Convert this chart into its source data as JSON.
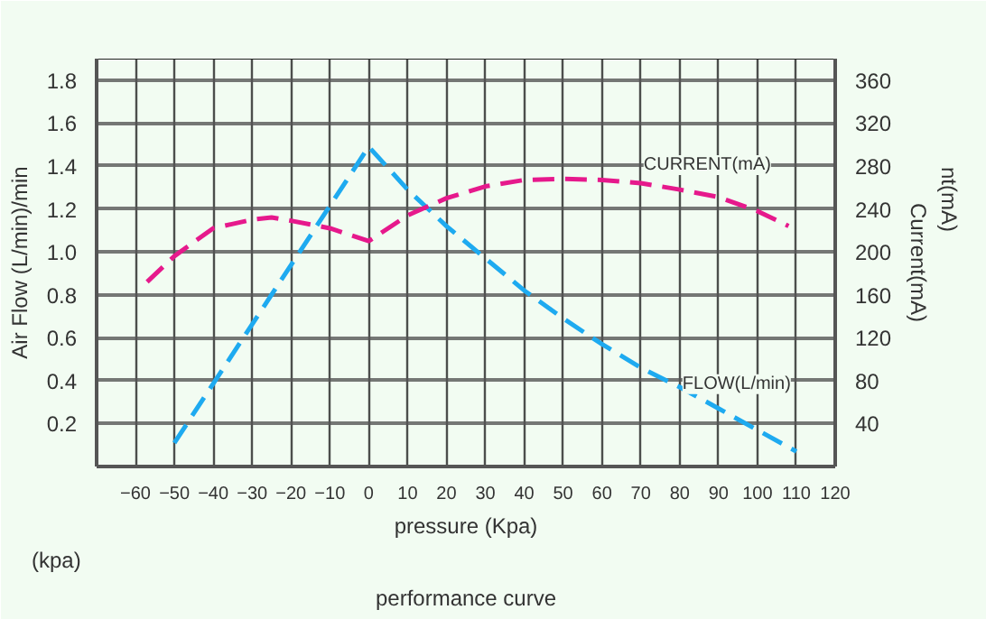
{
  "chart_data": {
    "type": "line",
    "title": "performance curve",
    "xlabel": "pressure (Kpa)",
    "ylabel": "Air Flow (L/min)/min",
    "y2label": "Current(mA)",
    "annotations": [
      "(kpa)",
      "nt(mA)"
    ],
    "x": [
      -50,
      0,
      10,
      20,
      30,
      40,
      50,
      60,
      70,
      80,
      90,
      100,
      110
    ],
    "series": [
      {
        "name": "FLOW(L/min)",
        "color": "#1eaaf0",
        "values": [
          0.11,
          1.49,
          1.29,
          1.12,
          0.97,
          0.82,
          0.69,
          0.57,
          0.46,
          0.37,
          0.27,
          0.17,
          0.07
        ]
      },
      {
        "name": "CURRENT(mA)",
        "color": "#e6198c",
        "axis": "y2",
        "x": [
          -57,
          -50,
          -40,
          -30,
          -25,
          -20,
          -10,
          0,
          10,
          20,
          30,
          40,
          50,
          60,
          70,
          80,
          90,
          100,
          108
        ],
        "values": [
          172,
          196,
          222,
          230,
          232,
          229,
          222,
          210,
          234,
          250,
          261,
          267,
          268,
          267,
          264,
          258,
          251,
          238,
          224
        ]
      }
    ],
    "xlim": [
      -70,
      120
    ],
    "xticks": [
      -60,
      -50,
      -40,
      -30,
      -20,
      -10,
      0,
      10,
      20,
      30,
      40,
      50,
      60,
      70,
      80,
      90,
      100,
      110,
      120
    ],
    "ylim": [
      0,
      1.9
    ],
    "yticks": [
      0.2,
      0.4,
      0.6,
      0.8,
      {
        "value": 1.0,
        "label": "1.0"
      },
      1.2,
      1.4,
      1.6,
      1.8
    ],
    "y2lim": [
      0,
      380
    ],
    "y2ticks": [
      40,
      80,
      120,
      160,
      200,
      240,
      280,
      320,
      360
    ],
    "grid": true,
    "line_style": "dashed",
    "marker": "none"
  }
}
